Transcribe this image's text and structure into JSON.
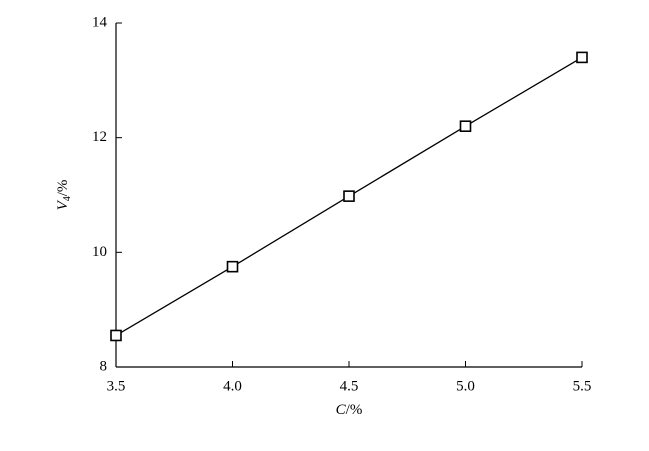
{
  "chart_data": {
    "type": "line",
    "x": [
      3.5,
      4.0,
      4.5,
      5.0,
      5.5
    ],
    "series": [
      {
        "values": [
          8.55,
          9.75,
          10.98,
          12.2,
          13.4
        ],
        "color": "#000000",
        "marker": "square"
      }
    ],
    "xlabel": {
      "symbol": "C",
      "unit": "/%"
    },
    "ylabel": {
      "symbol": "V",
      "subscript": "4",
      "unit": "/%"
    },
    "xlim": [
      3.5,
      5.5
    ],
    "xticks": [
      3.5,
      {
        "value": 4.0,
        "label": "4.0"
      },
      4.5,
      {
        "value": 5.0,
        "label": "5.0"
      },
      5.5
    ],
    "ylim": [
      8,
      14
    ],
    "yticks": [
      8,
      10,
      12,
      14
    ],
    "grid": false
  }
}
